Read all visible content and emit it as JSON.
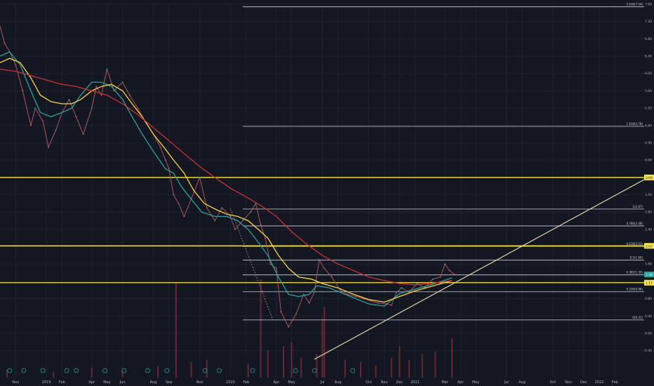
{
  "chart_data": {
    "type": "line",
    "title": "",
    "xlabel": "",
    "ylabel": "",
    "x_range": [
      "2018-10-01",
      "2022-03-31"
    ],
    "ylim": [
      -0.6,
      7.6
    ],
    "grid": true,
    "x_ticks": [
      {
        "label": "Nov",
        "date": "2018-11-01"
      },
      {
        "label": "2019",
        "date": "2019-01-01"
      },
      {
        "label": "Feb",
        "date": "2019-02-01"
      },
      {
        "label": "Apr",
        "date": "2019-04-01"
      },
      {
        "label": "May",
        "date": "2019-05-01"
      },
      {
        "label": "Jun",
        "date": "2019-06-01"
      },
      {
        "label": "Aug",
        "date": "2019-08-01"
      },
      {
        "label": "Sep",
        "date": "2019-09-01"
      },
      {
        "label": "Nov",
        "date": "2019-11-01"
      },
      {
        "label": "2020",
        "date": "2020-01-01"
      },
      {
        "label": "Feb",
        "date": "2020-02-01"
      },
      {
        "label": "Apr",
        "date": "2020-04-01"
      },
      {
        "label": "May",
        "date": "2020-05-01"
      },
      {
        "label": "Jul",
        "date": "2020-07-01"
      },
      {
        "label": "Aug",
        "date": "2020-08-01"
      },
      {
        "label": "Oct",
        "date": "2020-10-01"
      },
      {
        "label": "Nov",
        "date": "2020-11-01"
      },
      {
        "label": "Dec",
        "date": "2020-12-01"
      },
      {
        "label": "2021",
        "date": "2021-01-01"
      },
      {
        "label": "Mar",
        "date": "2021-03-01"
      },
      {
        "label": "Apr",
        "date": "2021-04-01"
      },
      {
        "label": "May",
        "date": "2021-05-01"
      },
      {
        "label": "Jul",
        "date": "2021-07-01"
      },
      {
        "label": "Aug",
        "date": "2021-08-01"
      },
      {
        "label": "Oct",
        "date": "2021-10-01"
      },
      {
        "label": "Nov",
        "date": "2021-11-01"
      },
      {
        "label": "Dec",
        "date": "2021-12-01"
      },
      {
        "label": "2022",
        "date": "2022-01-01"
      },
      {
        "label": "Feb",
        "date": "2022-02-01"
      }
    ],
    "y_ticks": [
      7.6,
      7.2,
      6.8,
      6.4,
      6.0,
      5.6,
      5.2,
      4.8,
      4.4,
      4.0,
      3.6,
      3.2,
      2.8,
      2.4,
      2.0,
      1.6,
      1.2,
      0.8,
      0.4,
      0.0,
      -0.4
    ],
    "fib_levels": [
      {
        "label": "2.618(7.54)",
        "value": 7.54
      },
      {
        "label": "1.618(4.78)",
        "value": 4.78
      },
      {
        "label": "1(2.87)",
        "value": 2.87
      },
      {
        "label": "0.786(2.48)",
        "value": 2.48
      },
      {
        "label": "0.618(2.01)",
        "value": 2.01
      },
      {
        "label": "0.5(1.69)",
        "value": 1.69
      },
      {
        "label": "0.382(1.35)",
        "value": 1.35
      },
      {
        "label": "0.236(0.96)",
        "value": 0.96
      },
      {
        "label": "0(0.31)",
        "value": 0.31
      }
    ],
    "horizontal_lines": [
      {
        "label": "3.60",
        "value": 3.6
      },
      {
        "label": "2.02",
        "value": 2.02
      },
      {
        "label": "1.17",
        "value": 1.17
      }
    ],
    "price_label": {
      "label": "1.36",
      "value": 1.36
    },
    "series": [
      {
        "color": "#26a69a",
        "x": [
          "2018-10-01",
          "2018-10-20",
          "2018-11-10",
          "2018-12-01",
          "2018-12-20",
          "2019-01-10",
          "2019-02-01",
          "2019-02-20",
          "2019-03-10",
          "2019-04-01",
          "2019-04-20",
          "2019-05-10",
          "2019-06-01",
          "2019-06-20",
          "2019-07-10",
          "2019-08-01",
          "2019-08-25",
          "2019-09-10",
          "2019-09-25",
          "2019-10-15",
          "2019-11-05",
          "2019-12-01",
          "2019-12-25",
          "2020-01-15",
          "2020-02-05",
          "2020-02-25",
          "2020-03-15",
          "2020-04-05",
          "2020-04-25",
          "2020-05-15",
          "2020-06-05",
          "2020-06-20",
          "2020-07-15",
          "2020-08-05",
          "2020-09-01",
          "2020-10-01",
          "2020-11-01",
          "2020-12-01",
          "2021-01-01",
          "2021-02-01",
          "2021-03-15"
        ],
        "values": [
          6.4,
          6.5,
          6.2,
          5.6,
          5.1,
          5.0,
          5.1,
          5.2,
          5.5,
          5.8,
          5.8,
          5.7,
          5.4,
          5.0,
          4.6,
          4.2,
          3.8,
          3.7,
          3.4,
          3.1,
          2.8,
          2.7,
          2.7,
          2.6,
          2.4,
          2.1,
          1.8,
          1.3,
          0.9,
          0.85,
          0.9,
          1.1,
          1.05,
          0.95,
          0.82,
          0.68,
          0.63,
          0.92,
          1.02,
          1.12,
          1.28
        ]
      },
      {
        "color": "#fdd835",
        "x": [
          "2018-10-01",
          "2018-10-20",
          "2018-11-10",
          "2018-12-01",
          "2018-12-20",
          "2019-01-10",
          "2019-02-01",
          "2019-02-20",
          "2019-03-10",
          "2019-04-01",
          "2019-04-20",
          "2019-05-10",
          "2019-06-01",
          "2019-06-20",
          "2019-07-10",
          "2019-08-01",
          "2019-08-25",
          "2019-09-10",
          "2019-10-01",
          "2019-10-20",
          "2019-11-10",
          "2019-12-05",
          "2019-12-25",
          "2020-01-15",
          "2020-02-05",
          "2020-02-25",
          "2020-03-15",
          "2020-04-05",
          "2020-04-25",
          "2020-05-15",
          "2020-06-10",
          "2020-07-01",
          "2020-08-01",
          "2020-09-01",
          "2020-10-01",
          "2020-11-01",
          "2020-12-01",
          "2021-01-01",
          "2021-02-01",
          "2021-03-15"
        ],
        "values": [
          6.25,
          6.35,
          6.25,
          5.9,
          5.5,
          5.35,
          5.3,
          5.3,
          5.4,
          5.6,
          5.7,
          5.75,
          5.6,
          5.3,
          5.0,
          4.6,
          4.25,
          4.0,
          3.7,
          3.3,
          3.0,
          2.85,
          2.75,
          2.7,
          2.6,
          2.4,
          2.2,
          1.8,
          1.5,
          1.3,
          1.25,
          1.15,
          1.05,
          0.9,
          0.78,
          0.72,
          0.85,
          0.98,
          1.08,
          1.22
        ]
      },
      {
        "color": "#d32f2f",
        "x": [
          "2018-10-01",
          "2018-11-01",
          "2018-12-01",
          "2019-01-01",
          "2019-02-01",
          "2019-03-01",
          "2019-04-01",
          "2019-05-01",
          "2019-06-01",
          "2019-07-01",
          "2019-08-01",
          "2019-09-01",
          "2019-10-01",
          "2019-11-01",
          "2019-12-01",
          "2020-01-01",
          "2020-02-01",
          "2020-03-01",
          "2020-04-01",
          "2020-05-01",
          "2020-06-01",
          "2020-07-01",
          "2020-08-01",
          "2020-09-01",
          "2020-10-01",
          "2020-11-01",
          "2020-12-01",
          "2021-01-01",
          "2021-02-01",
          "2021-03-15"
        ],
        "values": [
          6.1,
          6.05,
          5.95,
          5.85,
          5.75,
          5.7,
          5.6,
          5.5,
          5.3,
          5.05,
          4.75,
          4.45,
          4.15,
          3.85,
          3.6,
          3.35,
          3.15,
          2.95,
          2.7,
          2.35,
          2.05,
          1.8,
          1.6,
          1.45,
          1.3,
          1.22,
          1.15,
          1.12,
          1.15,
          1.22
        ]
      }
    ],
    "price_path": {
      "x": [
        "2018-10-01",
        "2018-10-10",
        "2018-10-20",
        "2018-11-01",
        "2018-11-15",
        "2018-12-01",
        "2018-12-10",
        "2018-12-25",
        "2019-01-05",
        "2019-01-20",
        "2019-02-01",
        "2019-02-15",
        "2019-03-01",
        "2019-03-15",
        "2019-04-01",
        "2019-04-10",
        "2019-04-20",
        "2019-05-01",
        "2019-05-15",
        "2019-06-01",
        "2019-06-15",
        "2019-07-01",
        "2019-07-15",
        "2019-08-01",
        "2019-08-15",
        "2019-08-25",
        "2019-09-01",
        "2019-09-10",
        "2019-09-20",
        "2019-10-01",
        "2019-10-15",
        "2019-11-01",
        "2019-11-15",
        "2019-12-01",
        "2019-12-15",
        "2020-01-01",
        "2020-01-10",
        "2020-01-25",
        "2020-02-10",
        "2020-02-20",
        "2020-03-01",
        "2020-03-10",
        "2020-03-20",
        "2020-04-01",
        "2020-04-10",
        "2020-04-25",
        "2020-05-10",
        "2020-05-25",
        "2020-06-05",
        "2020-06-15",
        "2020-06-25",
        "2020-07-05",
        "2020-07-20",
        "2020-08-05",
        "2020-08-20",
        "2020-09-05",
        "2020-09-20",
        "2020-10-05",
        "2020-10-20",
        "2020-11-05",
        "2020-11-15",
        "2020-11-25",
        "2020-12-05",
        "2020-12-20",
        "2021-01-05",
        "2021-01-20",
        "2021-02-05",
        "2021-02-20",
        "2021-03-01",
        "2021-03-10",
        "2021-03-20"
      ],
      "values": [
        7.1,
        6.7,
        6.5,
        6.2,
        5.6,
        4.8,
        5.2,
        4.9,
        4.3,
        4.7,
        5.1,
        5.4,
        5.0,
        4.6,
        5.2,
        5.7,
        5.5,
        6.1,
        5.6,
        5.8,
        5.5,
        5.2,
        4.9,
        4.6,
        4.3,
        4.0,
        3.8,
        3.2,
        3.0,
        2.7,
        3.1,
        3.6,
        2.9,
        2.6,
        2.9,
        2.7,
        2.4,
        2.6,
        2.8,
        3.0,
        2.5,
        2.2,
        1.6,
        1.5,
        0.5,
        0.15,
        0.45,
        0.9,
        0.7,
        0.95,
        1.7,
        1.5,
        1.3,
        1.0,
        0.9,
        0.85,
        0.8,
        0.75,
        0.7,
        0.68,
        0.65,
        0.95,
        1.05,
        0.95,
        1.15,
        1.05,
        1.25,
        1.3,
        1.6,
        1.45,
        1.36
      ]
    },
    "trendlines": [
      {
        "x": [
          "2020-06-15",
          "2022-03-31"
        ],
        "values": [
          -0.6,
          3.55
        ]
      },
      {
        "x": [
          "2020-01-01",
          "2020-03-25"
        ],
        "values": [
          2.87,
          0.31
        ]
      }
    ],
    "volume": {
      "x": [
        "2018-10-15",
        "2019-01-15",
        "2019-04-01",
        "2019-06-01",
        "2019-08-10",
        "2019-09-15",
        "2019-10-15",
        "2019-11-15",
        "2020-02-05",
        "2020-03-01",
        "2020-03-15",
        "2020-04-15",
        "2020-05-01",
        "2020-05-20",
        "2020-06-20",
        "2020-07-01",
        "2020-07-05",
        "2020-08-15",
        "2020-09-15",
        "2020-10-15",
        "2020-11-15",
        "2020-12-01",
        "2020-12-20",
        "2021-01-15",
        "2021-02-10",
        "2021-03-15"
      ],
      "values": [
        0.4,
        0.3,
        0.5,
        0.3,
        0.6,
        4.8,
        0.8,
        0.9,
        0.7,
        5.0,
        1.4,
        1.6,
        1.8,
        1.0,
        1.2,
        3.0,
        3.6,
        0.9,
        0.8,
        0.6,
        1.0,
        1.6,
        0.9,
        1.2,
        1.3,
        2.0
      ]
    }
  }
}
